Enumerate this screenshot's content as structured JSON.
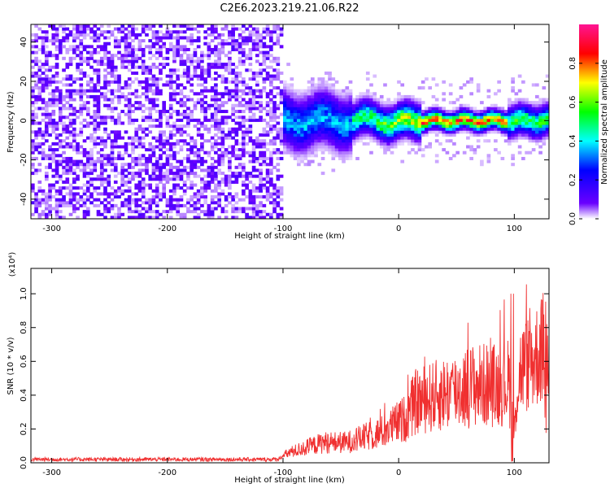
{
  "title": "C2E6.2023.219.21.06.R22",
  "chart_data": [
    {
      "type": "heatmap",
      "xlabel": "Height of straight line (km)",
      "ylabel": "Frequency (Hz)",
      "xlim": [
        -318,
        130
      ],
      "ylim": [
        -50,
        49
      ],
      "xticks": [
        -300,
        -200,
        -100,
        0,
        100
      ],
      "yticks": [
        -40,
        -20,
        0,
        20,
        40
      ],
      "colorbar": {
        "label": "Normalized spectral amplitude",
        "ticks": [
          0.0,
          0.2,
          0.4,
          0.6,
          0.8
        ],
        "range": [
          0,
          1
        ],
        "colormap": [
          "#ffffff",
          "#6a00ff",
          "#0000ff",
          "#00ffff",
          "#00ff00",
          "#ffff00",
          "#ff0000",
          "#ff1493"
        ]
      },
      "regions": [
        {
          "x_range": [
            -318,
            -100
          ],
          "pattern": "broadband noise, amplitude ~0.0-0.15 at all frequencies"
        },
        {
          "x_range": [
            -100,
            -40
          ],
          "pattern": "concentrated near 0 Hz (about -8 to 8 Hz), amplitude up to ~0.5"
        },
        {
          "x_range": [
            -40,
            130
          ],
          "pattern": "narrow ridge near 0 Hz, amplitude ~0.8-1.0 from 20 to 90 km"
        }
      ]
    },
    {
      "type": "line",
      "xlabel": "Height of straight line (km)",
      "ylabel": "SNR (10 * v/v)",
      "y_multiplier": "(x10⁴)",
      "xlim": [
        -318,
        130
      ],
      "ylim": [
        0,
        1.15
      ],
      "xticks": [
        -300,
        -200,
        -100,
        0,
        100
      ],
      "yticks": [
        0.0,
        0.2,
        0.4,
        0.6,
        0.8,
        1.0
      ],
      "color": "#f03030",
      "series": [
        {
          "x": [
            -318,
            -300,
            -280,
            -260,
            -240,
            -220,
            -200,
            -180,
            -160,
            -140,
            -120,
            -105,
            -95,
            -85,
            -75,
            -65,
            -55,
            -45,
            -35,
            -25,
            -15,
            -5,
            5,
            15,
            25,
            35,
            45,
            55,
            65,
            75,
            85,
            95,
            100,
            105,
            115,
            125,
            130
          ],
          "values": [
            0.02,
            0.02,
            0.02,
            0.02,
            0.02,
            0.02,
            0.02,
            0.02,
            0.02,
            0.02,
            0.02,
            0.02,
            0.06,
            0.08,
            0.1,
            0.12,
            0.12,
            0.12,
            0.14,
            0.16,
            0.18,
            0.22,
            0.26,
            0.36,
            0.38,
            0.4,
            0.42,
            0.44,
            0.46,
            0.46,
            0.46,
            0.48,
            0.3,
            0.55,
            0.6,
            0.68,
            0.7
          ]
        }
      ]
    }
  ]
}
